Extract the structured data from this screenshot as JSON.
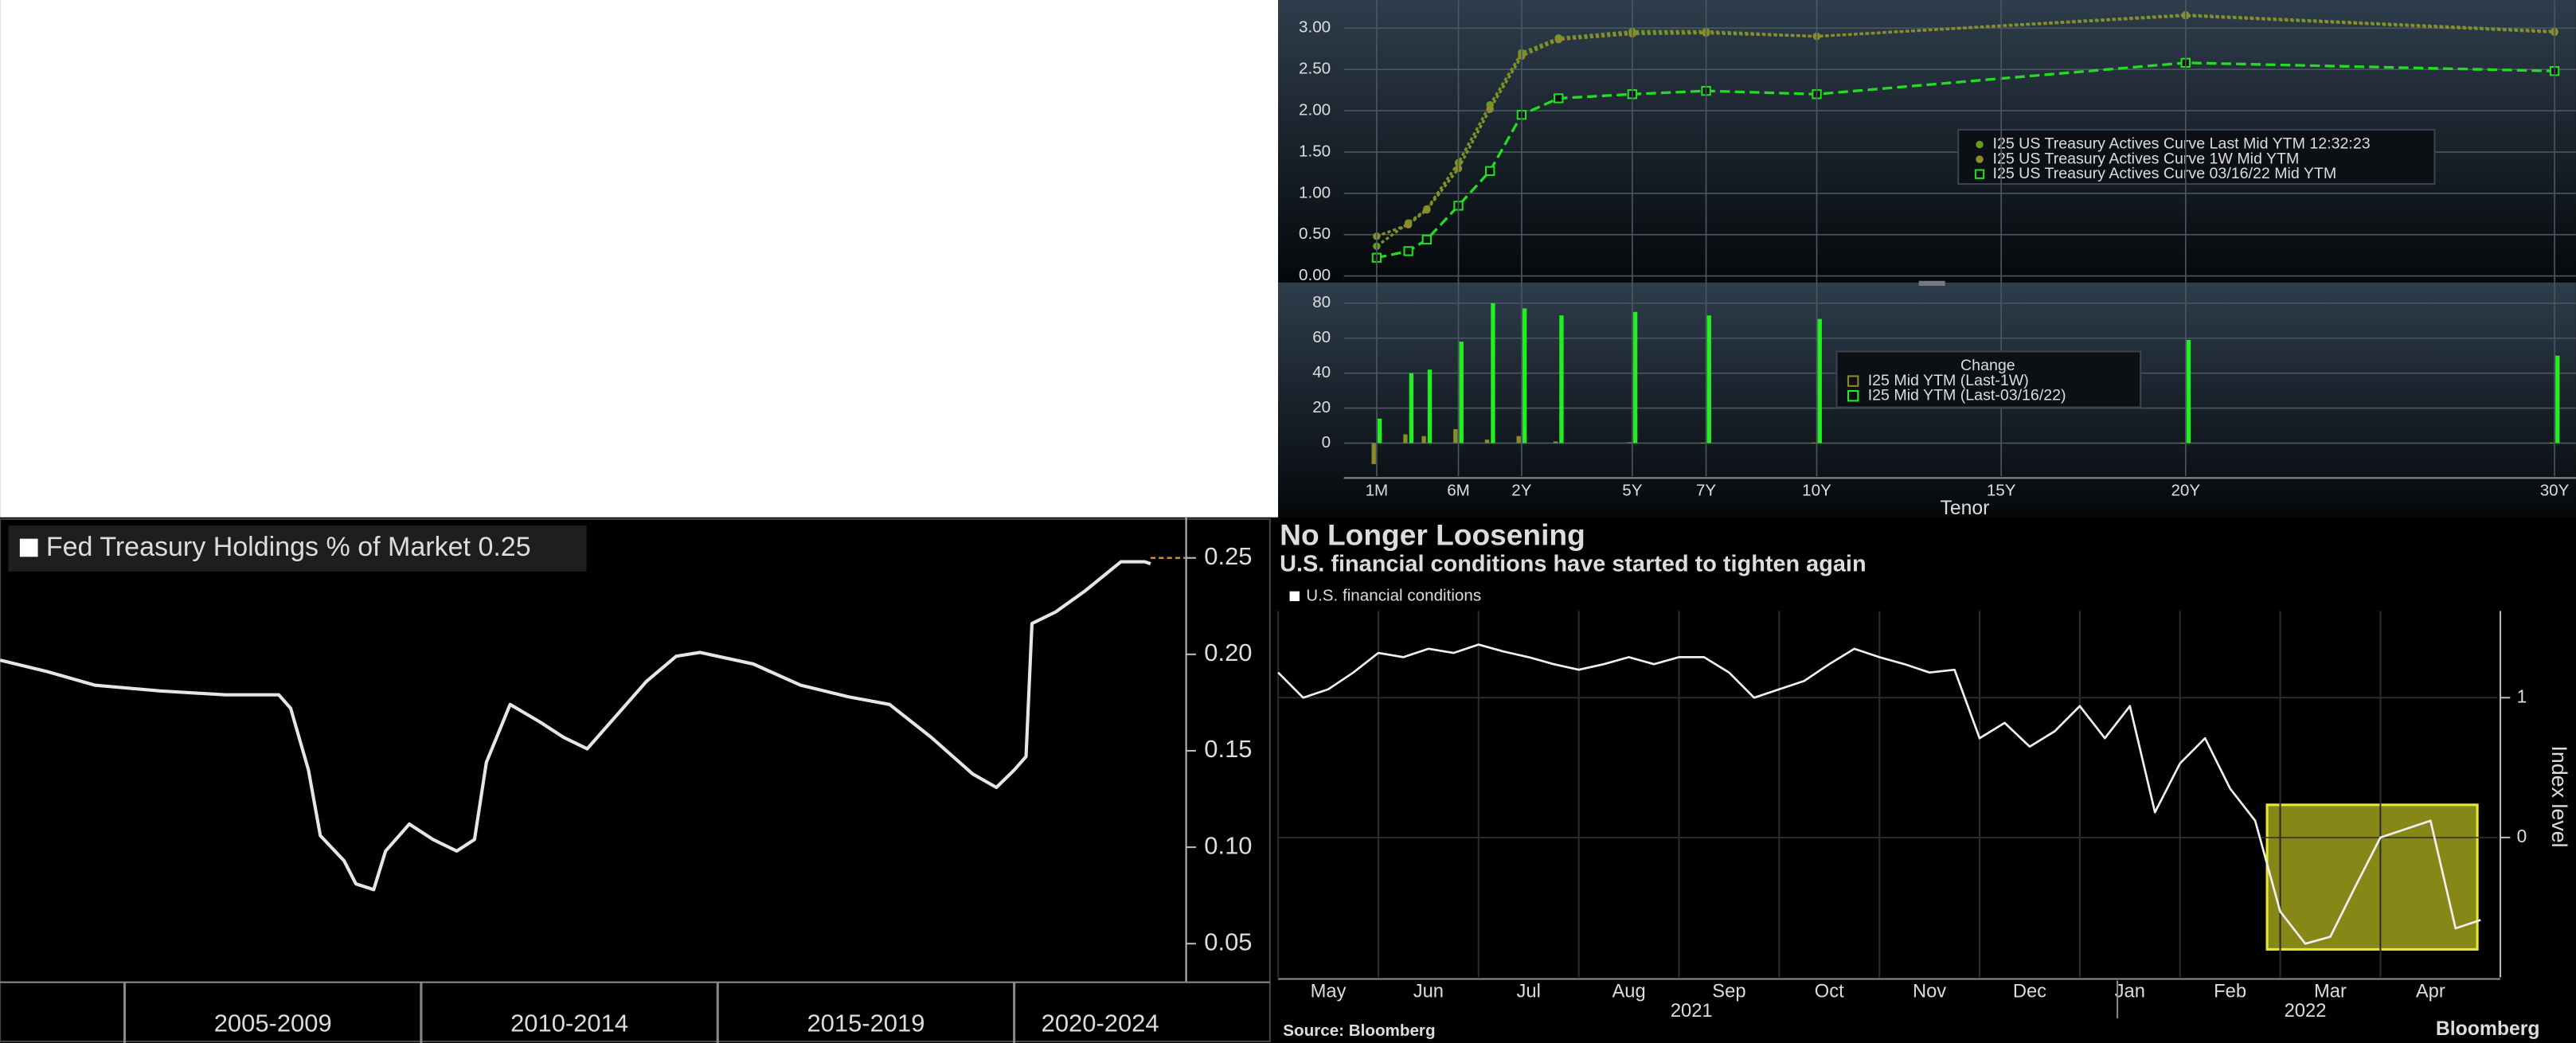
{
  "chart_data": [
    {
      "type": "line",
      "x": [
        0.0833,
        0.1667,
        0.25,
        0.5,
        1,
        2,
        3,
        5,
        7,
        10,
        20,
        30
      ],
      "xlim": [
        0.0833,
        30
      ],
      "ylim": [
        -0.04,
        3.34
      ],
      "yticks": [
        {
          "value": 0,
          "label": "0.00"
        },
        {
          "value": 0.5,
          "label": "0.50"
        },
        {
          "value": 1,
          "label": "1.00"
        },
        {
          "value": 1.5,
          "label": "1.50"
        },
        {
          "value": 2,
          "label": "2.00"
        },
        {
          "value": 2.5,
          "label": "2.50"
        },
        {
          "value": 3,
          "label": "3.00"
        }
      ],
      "grid": true,
      "series": [
        {
          "name": "I25 US Treasury Actives Curve Last Mid YTM 12:32:23",
          "color": "#6b9a22",
          "marker": "circle",
          "values": [
            0.36,
            0.64,
            0.81,
            1.37,
            2.07,
            2.7,
            2.88,
            2.96,
            2.96,
            2.9,
            3.16,
            2.96
          ]
        },
        {
          "name": "I25 US Treasury Actives Curve 1W Mid YTM",
          "color": "#8c8c2c",
          "marker": "circle",
          "values": [
            0.48,
            0.62,
            0.8,
            1.3,
            2.02,
            2.66,
            2.86,
            2.93,
            2.94,
            2.9,
            3.15,
            2.95
          ]
        },
        {
          "name": "I25 US Treasury Actives Curve 03/16/22 Mid YTM",
          "color": "#22dd22",
          "marker": "square",
          "dash": true,
          "values": [
            0.22,
            0.3,
            0.44,
            0.85,
            1.27,
            1.95,
            2.15,
            2.2,
            2.24,
            2.2,
            2.58,
            2.48
          ]
        }
      ]
    },
    {
      "type": "bar",
      "x": [
        0.0833,
        0.1667,
        0.25,
        0.5,
        1,
        2,
        3,
        5,
        7,
        10,
        20,
        30
      ],
      "xlim": [
        0.0833,
        30
      ],
      "xticks": [
        {
          "value": 0.0833,
          "label": "1M"
        },
        {
          "value": 0.5,
          "label": "6M"
        },
        {
          "value": 2,
          "label": "2Y"
        },
        {
          "value": 5,
          "label": "5Y"
        },
        {
          "value": 7,
          "label": "7Y"
        },
        {
          "value": 10,
          "label": "10Y"
        },
        {
          "value": 15,
          "label": "15Y"
        },
        {
          "value": 20,
          "label": "20Y"
        },
        {
          "value": 30,
          "label": "30Y"
        }
      ],
      "xlabel": "Tenor",
      "ylim": [
        -19,
        89
      ],
      "yticks": [
        0,
        20,
        40,
        60,
        80
      ],
      "grid": true,
      "legend_title": "Change",
      "series": [
        {
          "name": "I25 Mid YTM (Last-1W)",
          "color": "#8b8b2b",
          "values": [
            -12,
            5,
            4,
            8,
            2,
            4,
            1,
            0.5,
            0.3,
            0.3,
            0.2,
            0.3
          ]
        },
        {
          "name": "I25 Mid YTM (Last-03/16/22)",
          "color": "#22ee22",
          "values": [
            14,
            40,
            42,
            58,
            80,
            77,
            73,
            75,
            73,
            71,
            59,
            50
          ]
        }
      ]
    },
    {
      "type": "line",
      "x": [
        2002.9,
        2003.7,
        2004.5,
        2005.6,
        2006.7,
        2007.6,
        2007.8,
        2008.1,
        2008.3,
        2008.7,
        2008.9,
        2009.2,
        2009.4,
        2009.8,
        2010.2,
        2010.6,
        2010.9,
        2011.1,
        2011.5,
        2012.0,
        2012.4,
        2012.8,
        2013.2,
        2013.8,
        2014.3,
        2014.7,
        2015.6,
        2016.4,
        2017.2,
        2017.9,
        2018.6,
        2019.3,
        2019.7,
        2020.0,
        2020.2,
        2020.3,
        2020.7,
        2021.2,
        2021.8,
        2022.2,
        2022.3
      ],
      "xlim": [
        2002.9,
        2022.9
      ],
      "xbands": [
        {
          "start": 2005,
          "end": 2010,
          "label": "2005-2009"
        },
        {
          "start": 2010,
          "end": 2015,
          "label": "2010-2014"
        },
        {
          "start": 2015,
          "end": 2020,
          "label": "2015-2019"
        },
        {
          "start": 2020,
          "end": 2025,
          "label": "2020-2024"
        }
      ],
      "ylim": [
        0.03,
        0.271
      ],
      "yticks": [
        0.05,
        {
          "value": 0.1,
          "label": "0.10"
        },
        0.15,
        {
          "value": 0.2,
          "label": "0.20"
        },
        0.25
      ],
      "grid": false,
      "series": [
        {
          "name": "Fed Treasury Holdings % of Market",
          "legend_value": 0.25,
          "color": "#e6e6e6",
          "values": [
            0.197,
            0.191,
            0.184,
            0.181,
            0.179,
            0.179,
            0.172,
            0.14,
            0.106,
            0.093,
            0.081,
            0.078,
            0.098,
            0.112,
            0.104,
            0.098,
            0.104,
            0.144,
            0.174,
            0.165,
            0.157,
            0.151,
            0.165,
            0.186,
            0.199,
            0.201,
            0.195,
            0.184,
            0.178,
            0.174,
            0.157,
            0.138,
            0.131,
            0.14,
            0.147,
            0.216,
            0.222,
            0.233,
            0.248,
            0.248,
            0.247
          ]
        }
      ]
    },
    {
      "type": "line",
      "title": "No Longer Loosening",
      "subtitle": "U.S. financial conditions have started to tighten again",
      "categories": [
        null,
        null,
        "May",
        null,
        null,
        null,
        "Jun",
        null,
        null,
        null,
        "Jul",
        null,
        null,
        null,
        "Aug",
        null,
        null,
        null,
        "Sep",
        null,
        null,
        null,
        "Oct",
        null,
        null,
        null,
        "Nov",
        null,
        null,
        null,
        "Dec",
        null,
        null,
        null,
        "Jan",
        null,
        null,
        null,
        "Feb",
        null,
        null,
        null,
        "Mar",
        null,
        null,
        null,
        "Apr",
        null,
        null
      ],
      "category_groups": [
        {
          "label": "2021",
          "start": 0,
          "end": 33
        },
        {
          "label": "2022",
          "start": 34,
          "end": 48
        }
      ],
      "ylabel": "Index level",
      "ylim": [
        -1,
        1.62
      ],
      "yticks": [
        0,
        1
      ],
      "grid": true,
      "source": "Source: Bloomberg",
      "brand": "Bloomberg",
      "series": [
        {
          "name": "U.S. financial conditions",
          "color": "#f0f0f0",
          "values": [
            1.18,
            1.0,
            1.06,
            1.18,
            1.32,
            1.29,
            1.35,
            1.32,
            1.38,
            1.33,
            1.29,
            1.24,
            1.2,
            1.24,
            1.29,
            1.24,
            1.29,
            1.29,
            1.18,
            1.0,
            1.06,
            1.12,
            1.24,
            1.35,
            1.29,
            1.24,
            1.18,
            1.2,
            0.71,
            0.82,
            0.65,
            0.76,
            0.94,
            0.71,
            0.94,
            0.18,
            0.53,
            0.71,
            0.35,
            0.12,
            -0.53,
            -0.76,
            -0.71,
            -0.35,
            0,
            0.06,
            0.12,
            -0.65,
            -0.59
          ]
        }
      ]
    }
  ]
}
